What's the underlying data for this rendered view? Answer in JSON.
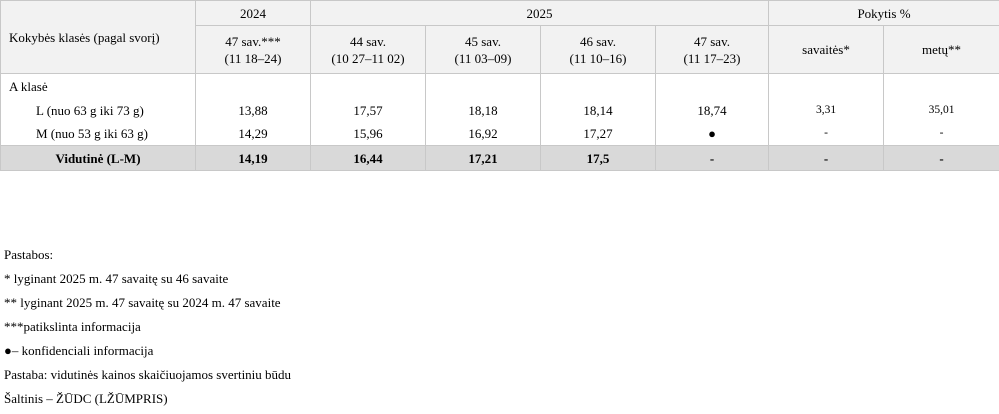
{
  "table": {
    "stub_header": "Kokybės klasės (pagal svorį)",
    "groups": [
      "2024",
      "2025",
      "Pokytis %"
    ],
    "columns": [
      [
        "47 sav.***",
        "(11 18–24)"
      ],
      [
        "44 sav.",
        "(10  27–11 02)"
      ],
      [
        "45 sav.",
        "(11  03–09)"
      ],
      [
        "46 sav.",
        "(11  10–16)"
      ],
      [
        "47 sav.",
        "(11  17–23)"
      ],
      [
        "savaitės*"
      ],
      [
        "metų**"
      ]
    ],
    "rows": [
      {
        "label": "A klasė"
      },
      {
        "label": "L (nuo 63 g iki 73 g)",
        "cells": [
          "13,88",
          "17,57",
          "18,18",
          "18,14",
          "18,74",
          "3,31",
          "35,01"
        ]
      },
      {
        "label": "M (nuo 53 g iki 63 g)",
        "cells": [
          "14,29",
          "15,96",
          "16,92",
          "17,27",
          "●",
          "-",
          "-"
        ]
      },
      {
        "label": "Vidutinė (L-M)",
        "cells": [
          "14,19",
          "16,44",
          "17,21",
          "17,5",
          "-",
          "-",
          "-"
        ]
      }
    ]
  },
  "notes": [
    "Pastabos:",
    "* lyginant 2025 m. 47 savaitę su 46 savaite",
    "** lyginant 2025 m. 47 savaitę su 2024 m. 47 savaite",
    "***patikslinta informacija",
    "●– konfidenciali informacija",
    "Pastaba: vidutinės kainos skaičiuojamos svertiniu būdu",
    "Šaltinis – ŽŪDC (LŽŪMPRIS)"
  ]
}
